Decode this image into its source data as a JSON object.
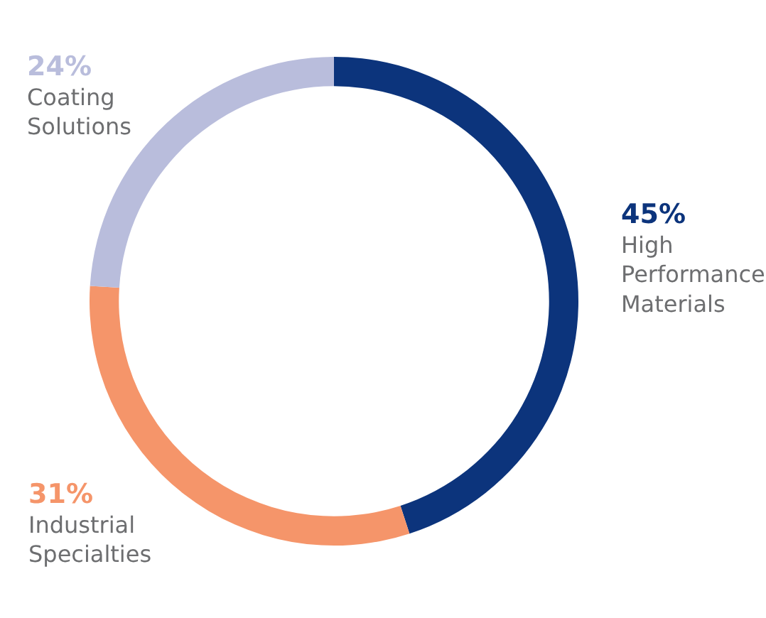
{
  "chart_data": {
    "type": "donut",
    "categories": [
      "High Performance Materials",
      "Industrial Specialties",
      "Coating Solutions"
    ],
    "values": [
      45,
      31,
      24
    ],
    "value_labels": [
      "45%",
      "31%",
      "24%"
    ],
    "colors": [
      "#0c347c",
      "#f5956a",
      "#b9bddc"
    ],
    "legend": false
  }
}
